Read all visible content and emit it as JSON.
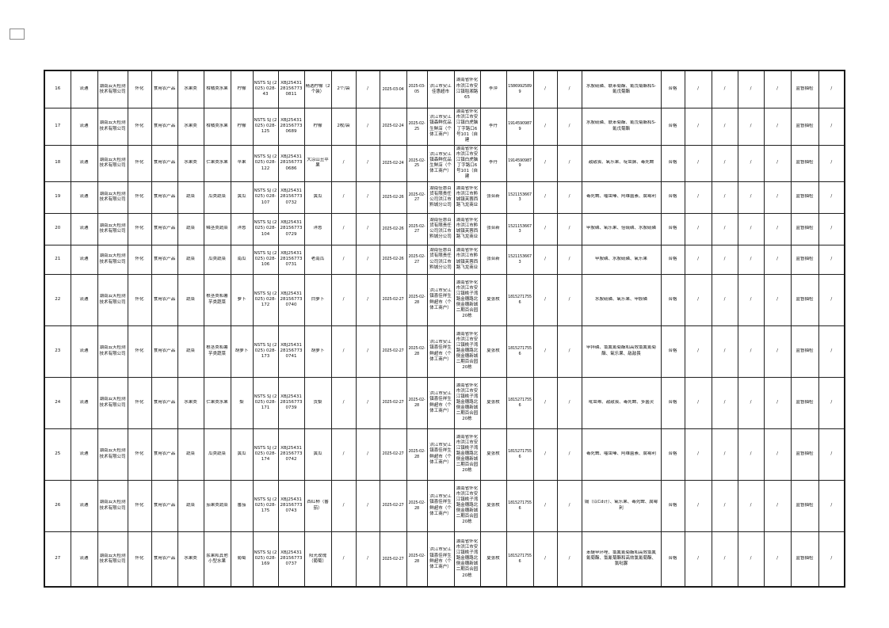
{
  "page": {
    "background": "#ffffff",
    "border_color": "#1a1a1a",
    "text_color": "#111111"
  },
  "table": {
    "column_keys": [
      "seq",
      "channel",
      "agency",
      "region",
      "cat",
      "subcat",
      "variety",
      "item",
      "sheet_no",
      "sample_no",
      "sample_name",
      "spec",
      "brand",
      "date_sampled",
      "date_tested",
      "seller",
      "address",
      "contact",
      "phone",
      "c20",
      "c21",
      "tests",
      "result",
      "c24",
      "c25",
      "c26",
      "c27",
      "task_type",
      "c29"
    ],
    "rows": [
      {
        "seq": "16",
        "channel": "流通",
        "agency": "湖南云天检测技术有限公司",
        "region": "怀化",
        "cat": "食用农产品",
        "subcat": "水果类",
        "variety": "柑橘类水果",
        "item": "柠檬",
        "sheet_no": "NSTS SJ (2025) 028-43",
        "sample_no": "XBJ25431281567730811",
        "sample_name": "精选柠檬（2个装）",
        "spec": "2个/袋",
        "brand": "/",
        "date_sampled": "2025-03-04",
        "date_tested": "2025-03-05",
        "seller": "洪江市安江佳惠超市",
        "address": "湖南省怀化市洪江市安江镇稻湘路65",
        "contact": "李萍",
        "phone": "15869925899",
        "c20": "/",
        "c21": "/",
        "tests": "水胺硫磷、联苯菊酯、氰戊菊酯和S-氰戊菊酯",
        "result": "合格",
        "c24": "/",
        "c25": "/",
        "c26": "/",
        "c27": "/",
        "task_type": "监督抽检",
        "c29": "/"
      },
      {
        "seq": "17",
        "channel": "流通",
        "agency": "湖南云天检测技术有限公司",
        "region": "怀化",
        "cat": "食用农产品",
        "subcat": "水果类",
        "variety": "柑橘类水果",
        "item": "柠檬",
        "sheet_no": "NSTS SJ (2025) 028-125",
        "sample_no": "XBJ25431281567730689",
        "sample_name": "柠檬",
        "spec": "2枚/袋",
        "brand": "/",
        "date_sampled": "2025-02-24",
        "date_tested": "2025-02-25",
        "seller": "洪江市安江镇森鲜优品生鲜店（个体工商户）",
        "address": "湖南省怀化市洪江市安江镇白虎脑丁字路口6号101（自建",
        "contact": "李丹",
        "phone": "19145909879",
        "c20": "/",
        "c21": "/",
        "tests": "水胺硫磷、联苯菊酯、氰戊菊酯和S-氰戊菊酯",
        "result": "合格",
        "c24": "/",
        "c25": "/",
        "c26": "/",
        "c27": "/",
        "task_type": "监督抽检",
        "c29": "/"
      },
      {
        "seq": "18",
        "channel": "流通",
        "agency": "湖南云天检测技术有限公司",
        "region": "怀化",
        "cat": "食用农产品",
        "subcat": "水果类",
        "variety": "仁果类水果",
        "item": "苹果",
        "sheet_no": "NSTS SJ (2025) 028-122",
        "sample_no": "XBJ25431281567730686",
        "sample_name": "大凉山丑苹果",
        "spec": "/",
        "brand": "/",
        "date_sampled": "2025-02-24",
        "date_tested": "2025-02-25",
        "seller": "洪江市安江镇森鲜优品生鲜店（个体工商户）",
        "address": "湖南省怀化市洪江市安江镇白虎脑丁字路口6号101（自建",
        "contact": "李丹",
        "phone": "19145909879",
        "c20": "/",
        "c21": "/",
        "tests": "敌敌畏、氧乐果、啶虫脒、毒死蜱",
        "result": "合格",
        "c24": "/",
        "c25": "/",
        "c26": "/",
        "c27": "/",
        "task_type": "监督抽检",
        "c29": "/"
      },
      {
        "seq": "19",
        "channel": "流通",
        "agency": "湖南云天检测技术有限公司",
        "region": "怀化",
        "cat": "食用农产品",
        "subcat": "蔬菜",
        "variety": "瓜类蔬菜",
        "item": "黄瓜",
        "sheet_no": "NSTS SJ (2025) 028-107",
        "sample_no": "XBJ25431281567730732",
        "sample_name": "黄瓜",
        "spec": "/",
        "brand": "/",
        "date_sampled": "2025-02-26",
        "date_tested": "2025-02-27",
        "seller": "湖南佳惠百货有限责任公司洪江市黔城分公司",
        "address": "湖南省怀化市洪江市黔城镇芙蓉西路飞龙商业",
        "contact": "张合新",
        "phone": "15211536673",
        "c20": "/",
        "c21": "/",
        "tests": "毒死蜱、噻虫嗪、阿维菌素、腐霉利",
        "result": "合格",
        "c24": "/",
        "c25": "/",
        "c26": "/",
        "c27": "/",
        "task_type": "监督抽检",
        "c29": "/"
      },
      {
        "seq": "20",
        "channel": "流通",
        "agency": "湖南云天检测技术有限公司",
        "region": "怀化",
        "cat": "食用农产品",
        "subcat": "蔬菜",
        "variety": "鳞茎类蔬菜",
        "item": "洋葱",
        "sheet_no": "NSTS SJ (2025) 028-104",
        "sample_no": "XBJ25431281567730729",
        "sample_name": "洋葱",
        "spec": "/",
        "brand": "/",
        "date_sampled": "2025-02-26",
        "date_tested": "2025-02-27",
        "seller": "湖南佳惠百货有限责任公司洪江市黔城分公司",
        "address": "湖南省怀化市洪江市黔城镇芙蓉西路飞龙商业",
        "contact": "张合新",
        "phone": "15211536673",
        "c20": "/",
        "c21": "/",
        "tests": "甲胺磷、氧乐果、倍硫磷、水胺硫磷",
        "result": "合格",
        "c24": "/",
        "c25": "/",
        "c26": "/",
        "c27": "/",
        "task_type": "监督抽检",
        "c29": "/"
      },
      {
        "seq": "21",
        "channel": "流通",
        "agency": "湖南云天检测技术有限公司",
        "region": "怀化",
        "cat": "食用农产品",
        "subcat": "蔬菜",
        "variety": "瓜类蔬菜",
        "item": "南瓜",
        "sheet_no": "NSTS SJ (2025) 028-106",
        "sample_no": "XBJ25431281567730731",
        "sample_name": "老南瓜",
        "spec": "/",
        "brand": "/",
        "date_sampled": "2025-02-26",
        "date_tested": "2025-02-27",
        "seller": "湖南佳惠百货有限责任公司洪江市黔城分公司",
        "address": "湖南省怀化市洪江市黔城镇芙蓉西路飞龙商业",
        "contact": "张合新",
        "phone": "15211536673",
        "c20": "/",
        "c21": "/",
        "tests": "甲胺磷、水胺硫磷、氧乐果",
        "result": "合格",
        "c24": "/",
        "c25": "/",
        "c26": "/",
        "c27": "/",
        "task_type": "监督抽检",
        "c29": "/"
      },
      {
        "seq": "22",
        "channel": "流通",
        "agency": "湖南云天检测技术有限公司",
        "region": "怀化",
        "cat": "食用农产品",
        "subcat": "蔬菜",
        "variety": "根茎类和薯芋类蔬菜",
        "item": "萝卜",
        "sheet_no": "NSTS SJ (2025) 028-172",
        "sample_no": "XBJ25431281567730740",
        "sample_name": "白萝卜",
        "spec": "/",
        "brand": "/",
        "date_sampled": "2025-02-27",
        "date_tested": "2025-02-28",
        "seller": "洪江市安江镇喜佳祥生鲜超市（个体工商户）",
        "address": "湖南省怀化市洪江市安江镇桃子湾路金穗路北侧金穗新城二期百合园20栋",
        "contact": "夏张枚",
        "phone": "18152717556",
        "c20": "/",
        "c21": "/",
        "tests": "水胺硫磷、氧乐果、甲胺磷",
        "result": "合格",
        "c24": "/",
        "c25": "/",
        "c26": "/",
        "c27": "/",
        "task_type": "监督抽检",
        "c29": "/"
      },
      {
        "seq": "23",
        "channel": "流通",
        "agency": "湖南云天检测技术有限公司",
        "region": "怀化",
        "cat": "食用农产品",
        "subcat": "蔬菜",
        "variety": "根茎类和薯芋类蔬菜",
        "item": "胡萝卜",
        "sheet_no": "NSTS SJ (2025) 028-173",
        "sample_no": "XBJ25431281567730741",
        "sample_name": "胡萝卜",
        "spec": "/",
        "brand": "/",
        "date_sampled": "2025-02-27",
        "date_tested": "2025-02-28",
        "seller": "洪江市安江镇喜佳祥生鲜超市（个体工商户）",
        "address": "湖南省怀化市洪江市安江镇桃子湾路金穗路北侧金穗新城二期百合园20栋",
        "contact": "夏张枚",
        "phone": "18152717556",
        "c20": "/",
        "c21": "/",
        "tests": "甲拌磷、氯氟氰菊酯和高效氯氟氰菊酯、氧乐果、敌敌畏",
        "result": "合格",
        "c24": "/",
        "c25": "/",
        "c26": "/",
        "c27": "/",
        "task_type": "监督抽检",
        "c29": "/"
      },
      {
        "seq": "24",
        "channel": "流通",
        "agency": "湖南云天检测技术有限公司",
        "region": "怀化",
        "cat": "食用农产品",
        "subcat": "水果类",
        "variety": "仁果类水果",
        "item": "梨",
        "sheet_no": "NSTS SJ (2025) 028-171",
        "sample_no": "XBJ25431281567730739",
        "sample_name": "贡梨",
        "spec": "/",
        "brand": "/",
        "date_sampled": "2025-02-27",
        "date_tested": "2025-02-28",
        "seller": "洪江市安江镇喜佳祥生鲜超市（个体工商户）",
        "address": "湖南省怀化市洪江市安江镇桃子湾路金穗路北侧金穗新城二期百合园20栋",
        "contact": "夏张枚",
        "phone": "18152717556",
        "c20": "/",
        "c21": "/",
        "tests": "吡虫啉、敌敌畏、毒死蜱、多菌灵",
        "result": "合格",
        "c24": "/",
        "c25": "/",
        "c26": "/",
        "c27": "/",
        "task_type": "监督抽检",
        "c29": "/"
      },
      {
        "seq": "25",
        "channel": "流通",
        "agency": "湖南云天检测技术有限公司",
        "region": "怀化",
        "cat": "食用农产品",
        "subcat": "蔬菜",
        "variety": "瓜类蔬菜",
        "item": "黄瓜",
        "sheet_no": "NSTS SJ (2025) 028-174",
        "sample_no": "XBJ25431281567730742",
        "sample_name": "黄瓜",
        "spec": "/",
        "brand": "/",
        "date_sampled": "2025-02-27",
        "date_tested": "2025-02-28",
        "seller": "洪江市安江镇喜佳祥生鲜超市（个体工商户）",
        "address": "湖南省怀化市洪江市安江镇桃子湾路金穗路北侧金穗新城二期百合园20栋",
        "contact": "夏张枚",
        "phone": "18152717556",
        "c20": "/",
        "c21": "/",
        "tests": "毒死蜱、噻虫嗪、阿维菌素、腐霉利",
        "result": "合格",
        "c24": "/",
        "c25": "/",
        "c26": "/",
        "c27": "/",
        "task_type": "监督抽检",
        "c29": "/"
      },
      {
        "seq": "26",
        "channel": "流通",
        "agency": "湖南云天检测技术有限公司",
        "region": "怀化",
        "cat": "食用农产品",
        "subcat": "蔬菜",
        "variety": "茄果类蔬菜",
        "item": "番茄",
        "sheet_no": "NSTS SJ (2025) 028-175",
        "sample_no": "XBJ25431281567730743",
        "sample_name": "西红柿（番茄）",
        "spec": "/",
        "brand": "/",
        "date_sampled": "2025-02-27",
        "date_tested": "2025-02-28",
        "seller": "洪江市安江镇喜佳祥生鲜超市（个体工商户）",
        "address": "湖南省怀化市洪江市安江镇桃子湾路金穗路北侧金穗新城二期百合园20栋",
        "contact": "夏张枚",
        "phone": "18152717556",
        "c20": "/",
        "c21": "/",
        "tests": "镉（以Cd计）、氧乐果、毒死蜱、腐霉利",
        "result": "合格",
        "c24": "/",
        "c25": "/",
        "c26": "/",
        "c27": "/",
        "task_type": "监督抽检",
        "c29": "/"
      },
      {
        "seq": "27",
        "channel": "流通",
        "agency": "湖南云天检测技术有限公司",
        "region": "怀化",
        "cat": "食用农产品",
        "subcat": "水果类",
        "variety": "浆果和其他小型水果",
        "item": "葡萄",
        "sheet_no": "NSTS SJ (2025) 028-169",
        "sample_no": "XBJ25431281567730737",
        "sample_name": "阳光玫瑰（葡萄）",
        "spec": "/",
        "brand": "/",
        "date_sampled": "2025-02-27",
        "date_tested": "2025-02-28",
        "seller": "洪江市安江镇喜佳祥生鲜超市（个体工商户）",
        "address": "湖南省怀化市洪江市安江镇桃子湾路金穗路北侧金穗新城二期百合园20栋",
        "contact": "夏张枚",
        "phone": "18152717556",
        "c20": "/",
        "c21": "/",
        "tests": "苯醚甲环唑、氯氟氰菊酯和高效氯氟氰菊酯、氯氰菊酯和高效氯氰菊酯、氯吡脲",
        "result": "合格",
        "c24": "/",
        "c25": "/",
        "c26": "/",
        "c27": "/",
        "task_type": "监督抽检",
        "c29": "/"
      }
    ]
  }
}
